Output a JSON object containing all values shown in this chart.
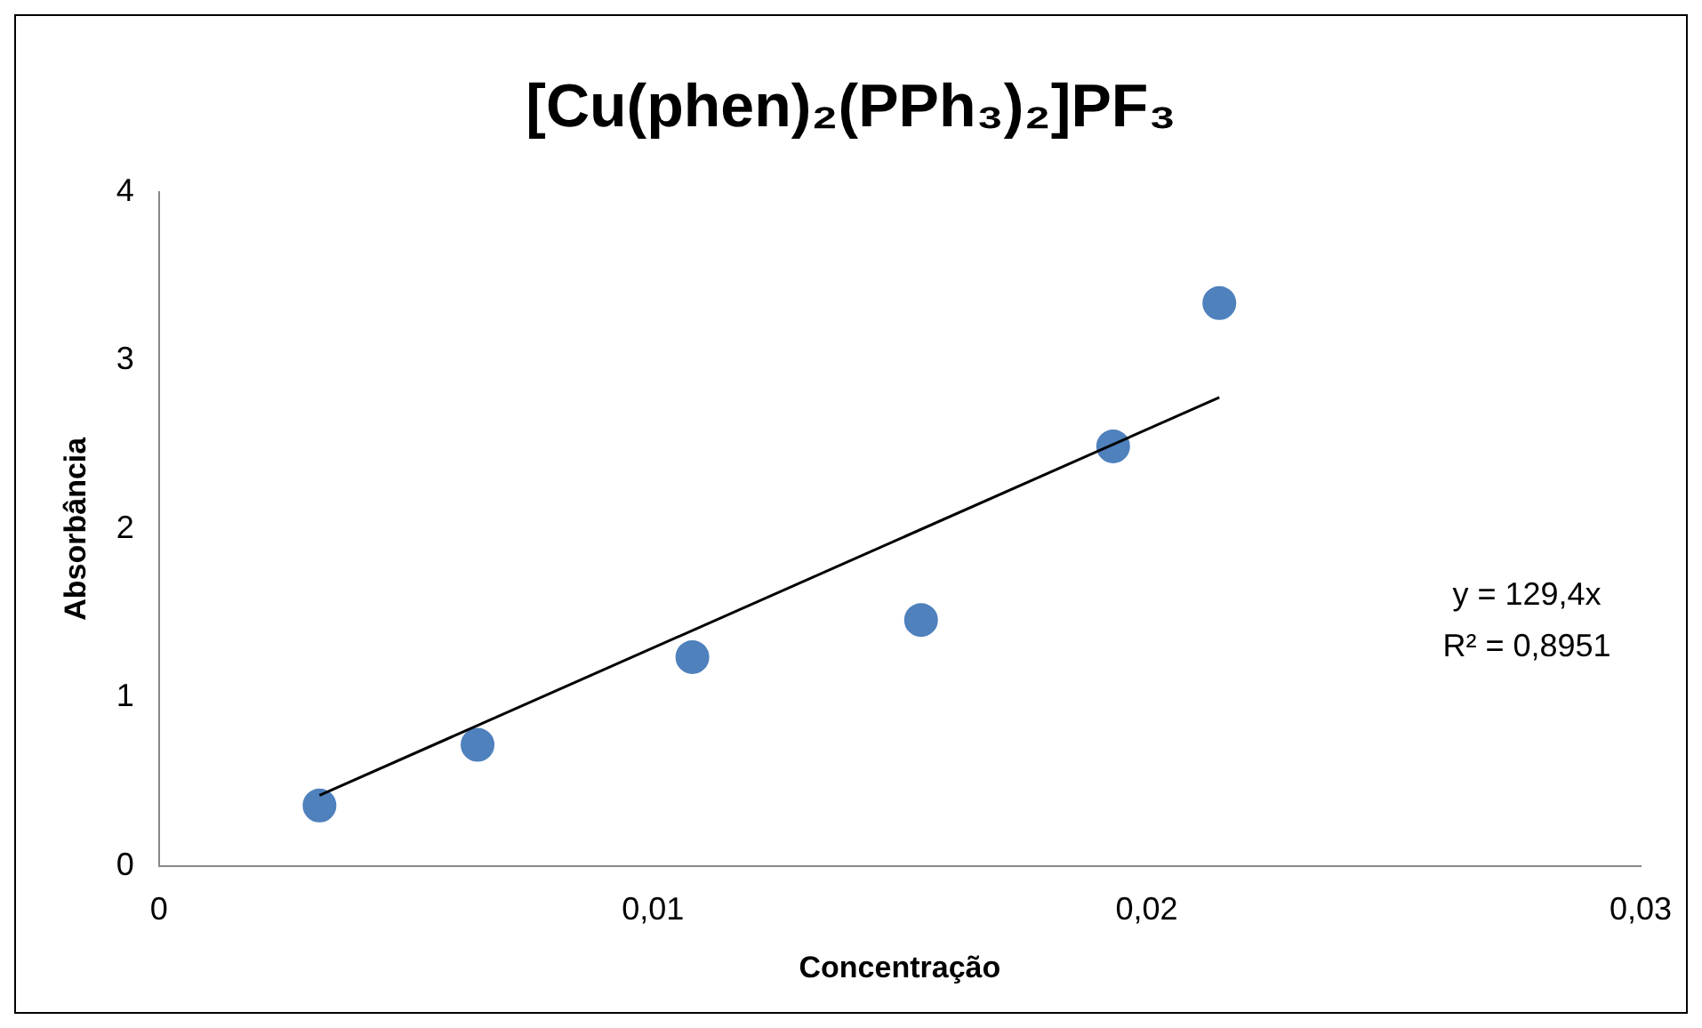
{
  "chart_data": {
    "type": "scatter",
    "title": "[Cu(phen)₂(PPh₃)₂]PF₃",
    "xlabel": "Concentração",
    "ylabel": "Absorbância",
    "series": [
      {
        "type": "scatter",
        "color": "#4f81bd",
        "x": [
          0.00325,
          0.00645,
          0.0108,
          0.01543,
          0.01932,
          0.02147
        ],
        "values": [
          0.36,
          0.72,
          1.24,
          1.46,
          2.49,
          3.34
        ],
        "marker": "circle"
      },
      {
        "type": "line",
        "color": "#000000",
        "x": [
          0.00325,
          0.02147
        ],
        "values": [
          0.42,
          2.78
        ],
        "marker": "none",
        "line_style": "solid"
      }
    ],
    "xlim": [
      0,
      0.03
    ],
    "xticks": [
      0,
      {
        "value": 0.01,
        "label": "0,01"
      },
      {
        "value": 0.02,
        "label": "0,02"
      },
      {
        "value": 0.03,
        "label": "0,03"
      }
    ],
    "ylim": [
      0,
      4
    ],
    "yticks": [
      0,
      1,
      2,
      3,
      4
    ],
    "annotations": [
      "y = 129,4x",
      "R² = 0,8951"
    ],
    "grid": false,
    "legend": false
  }
}
